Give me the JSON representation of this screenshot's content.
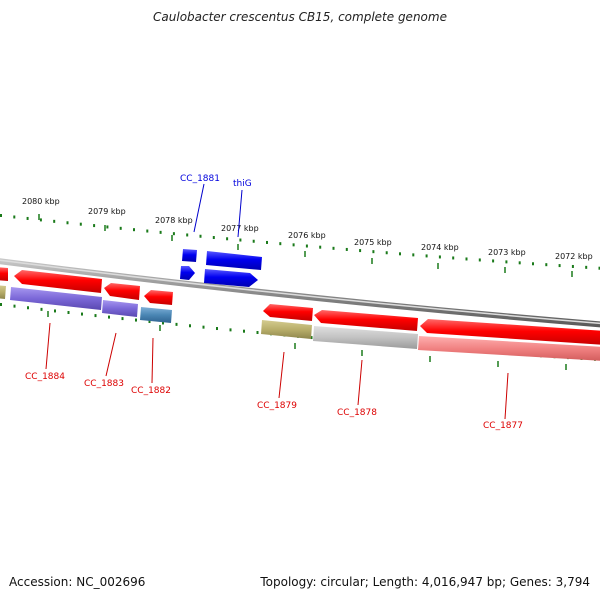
{
  "title": "Caulobacter crescentus CB15, complete genome",
  "footer": {
    "accession": "Accession: NC_002696",
    "summary": "Topology: circular; Length: 4,016,947 bp; Genes: 3,794"
  },
  "ticks": [
    {
      "label": "2080 kbp"
    },
    {
      "label": "2079 kbp"
    },
    {
      "label": "2078 kbp"
    },
    {
      "label": "2077 kbp"
    },
    {
      "label": "2076 kbp"
    },
    {
      "label": "2075 kbp"
    },
    {
      "label": "2074 kbp"
    },
    {
      "label": "2073 kbp"
    },
    {
      "label": "2072 kbp"
    }
  ],
  "genes": [
    {
      "label": "CC_1881",
      "color": "#0000dd"
    },
    {
      "label": "thiG",
      "color": "#0000dd"
    },
    {
      "label": "CC_1884",
      "color": "#dd0000"
    },
    {
      "label": "CC_1883",
      "color": "#dd0000"
    },
    {
      "label": "CC_1882",
      "color": "#dd0000"
    },
    {
      "label": "CC_1879",
      "color": "#dd0000"
    },
    {
      "label": "CC_1878",
      "color": "#dd0000"
    },
    {
      "label": "CC_1877",
      "color": "#dd0000"
    }
  ],
  "colors": {
    "backbone": "#8a8a8a",
    "tick": "#1a7a1a",
    "forward_gene": "#0000ee",
    "reverse_gene": "#ee0000",
    "category_purple": "#7b68d8",
    "category_olive": "#b8ae6a",
    "category_steel": "#4a86b4",
    "category_grey": "#bdbdbd",
    "category_pink": "#f08080"
  }
}
